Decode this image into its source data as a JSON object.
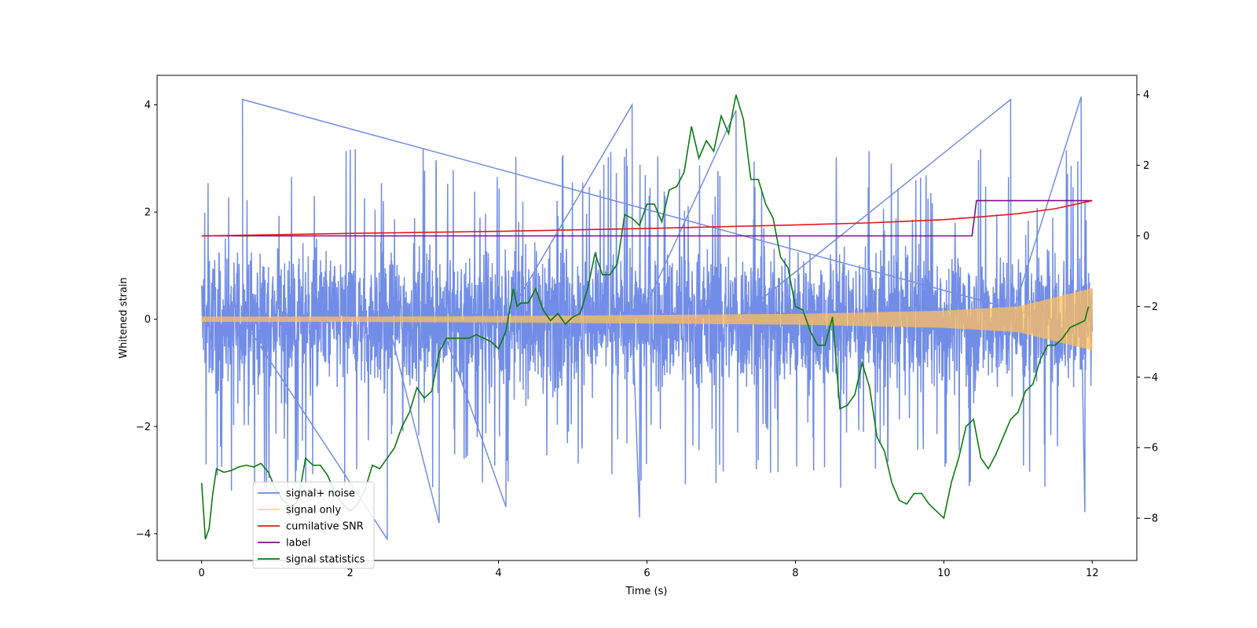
{
  "chart_data": {
    "type": "line",
    "xlabel": "Time (s)",
    "ylabel": "Whitened strain",
    "xlim": [
      -0.6,
      12.6
    ],
    "ylim": [
      -4.5,
      4.55
    ],
    "y2lim": [
      -9.2,
      4.55
    ],
    "xticks": [
      0,
      2,
      4,
      6,
      8,
      10,
      12
    ],
    "yticks": [
      -4,
      -2,
      0,
      2,
      4
    ],
    "y2ticks": [
      -8,
      -6,
      -4,
      -2,
      0,
      2,
      4
    ],
    "legend_position": "lower left",
    "series": [
      {
        "name": "signal+ noise",
        "axis": "left",
        "color": "#6a87e6",
        "style": "dense noise, typical range about -2.5 to 2.6, peaks up to about 4.1 and down to about -4.1",
        "x_range": [
          0,
          12
        ],
        "typical_min": -2.5,
        "typical_max": 2.6,
        "peaks": [
          {
            "x": 0.55,
            "y": 4.1
          },
          {
            "x": 2.5,
            "y": -4.1
          },
          {
            "x": 3.2,
            "y": -3.8
          },
          {
            "x": 4.1,
            "y": -3.5
          },
          {
            "x": 5.8,
            "y": 4.0
          },
          {
            "x": 5.9,
            "y": -3.7
          },
          {
            "x": 7.2,
            "y": 3.9
          },
          {
            "x": 10.9,
            "y": 4.1
          },
          {
            "x": 11.85,
            "y": 4.15
          },
          {
            "x": 11.9,
            "y": -3.6
          }
        ]
      },
      {
        "name": "signal only",
        "axis": "left",
        "color": "#ffbf5e",
        "style": "chirp with amplitude growing over time",
        "x": [
          0,
          2,
          4,
          6,
          8,
          10,
          11,
          12
        ],
        "amplitude": [
          0.05,
          0.05,
          0.06,
          0.08,
          0.1,
          0.16,
          0.24,
          0.58
        ]
      },
      {
        "name": "cumilative SNR",
        "axis": "right",
        "color": "#e8141b",
        "x": [
          0,
          2,
          4,
          6,
          8,
          9,
          10,
          10.5,
          11,
          11.5,
          12
        ],
        "y": [
          0.0,
          0.07,
          0.13,
          0.21,
          0.31,
          0.37,
          0.46,
          0.54,
          0.63,
          0.77,
          1.0
        ]
      },
      {
        "name": "label",
        "axis": "right",
        "color": "#7b0f8c",
        "x": [
          0,
          10.38,
          10.44,
          12
        ],
        "y": [
          0,
          0,
          1,
          1
        ]
      },
      {
        "name": "signal statistics",
        "axis": "right",
        "color": "#0c7a10",
        "x": [
          0,
          0.05,
          0.1,
          0.15,
          0.2,
          0.3,
          0.4,
          0.5,
          0.6,
          0.7,
          0.8,
          0.9,
          1.0,
          1.1,
          1.2,
          1.3,
          1.4,
          1.5,
          1.6,
          1.7,
          1.8,
          1.9,
          2.0,
          2.1,
          2.2,
          2.3,
          2.4,
          2.5,
          2.6,
          2.7,
          2.8,
          2.9,
          3.0,
          3.1,
          3.2,
          3.3,
          3.4,
          3.5,
          3.6,
          3.7,
          3.8,
          3.9,
          4.0,
          4.1,
          4.2,
          4.25,
          4.3,
          4.4,
          4.5,
          4.6,
          4.7,
          4.8,
          4.9,
          5.0,
          5.1,
          5.2,
          5.3,
          5.4,
          5.5,
          5.6,
          5.7,
          5.8,
          5.9,
          6.0,
          6.1,
          6.2,
          6.3,
          6.4,
          6.5,
          6.6,
          6.7,
          6.8,
          6.9,
          7.0,
          7.1,
          7.2,
          7.3,
          7.4,
          7.5,
          7.6,
          7.7,
          7.8,
          7.9,
          8.0,
          8.1,
          8.2,
          8.3,
          8.4,
          8.5,
          8.6,
          8.7,
          8.8,
          8.9,
          9.0,
          9.1,
          9.2,
          9.3,
          9.4,
          9.5,
          9.6,
          9.7,
          9.8,
          9.9,
          10.0,
          10.1,
          10.2,
          10.3,
          10.4,
          10.5,
          10.6,
          10.7,
          10.8,
          10.9,
          11.0,
          11.1,
          11.2,
          11.3,
          11.4,
          11.5,
          11.6,
          11.7,
          11.8,
          11.9,
          11.95
        ],
        "y": [
          -7.0,
          -8.6,
          -8.3,
          -7.3,
          -6.6,
          -6.7,
          -6.65,
          -6.55,
          -6.5,
          -6.55,
          -6.45,
          -6.7,
          -7.2,
          -7.5,
          -7.7,
          -7.5,
          -6.3,
          -6.5,
          -6.5,
          -6.8,
          -7.3,
          -7.6,
          -7.8,
          -7.6,
          -7.2,
          -6.5,
          -6.6,
          -6.3,
          -6.0,
          -5.4,
          -5.0,
          -4.3,
          -4.6,
          -4.4,
          -3.3,
          -2.9,
          -2.9,
          -2.9,
          -2.9,
          -2.8,
          -2.9,
          -3.0,
          -3.2,
          -2.7,
          -1.5,
          -2.0,
          -1.9,
          -1.9,
          -1.5,
          -2.1,
          -2.4,
          -2.2,
          -2.5,
          -2.3,
          -2.2,
          -1.5,
          -0.5,
          -1.1,
          -1.1,
          -0.8,
          0.6,
          0.5,
          0.3,
          0.9,
          0.9,
          0.4,
          1.3,
          1.4,
          1.8,
          3.1,
          2.2,
          2.7,
          2.4,
          3.4,
          2.9,
          4.0,
          3.3,
          1.6,
          1.6,
          0.9,
          0.5,
          -0.6,
          -0.9,
          -2.0,
          -2.1,
          -2.7,
          -3.1,
          -3.1,
          -2.3,
          -4.9,
          -4.8,
          -4.5,
          -3.6,
          -4.3,
          -5.7,
          -6.1,
          -7.0,
          -7.5,
          -7.6,
          -7.3,
          -7.3,
          -7.6,
          -7.8,
          -8.0,
          -7.0,
          -6.3,
          -5.4,
          -5.2,
          -6.3,
          -6.6,
          -6.2,
          -5.7,
          -5.2,
          -5.0,
          -4.4,
          -4.2,
          -3.5,
          -3.1,
          -3.1,
          -2.9,
          -2.6,
          -2.5,
          -2.4,
          -2.0
        ]
      }
    ]
  }
}
